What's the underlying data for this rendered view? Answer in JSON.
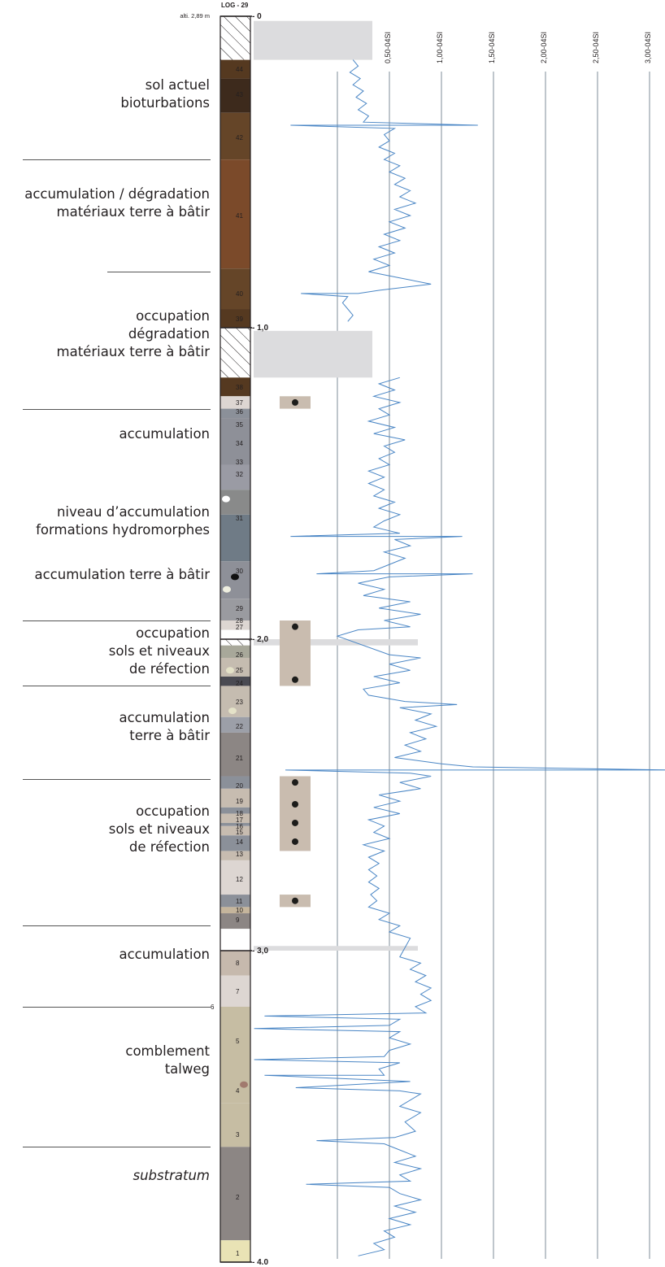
{
  "header": {
    "log_title": "LOG - 29",
    "altitude": "alti. 2,89 m"
  },
  "depth_marks": [
    {
      "label": "- 0",
      "depth": 0
    },
    {
      "label": "- 1,0",
      "depth": 1.0
    },
    {
      "label": "- 2,0",
      "depth": 2.0
    },
    {
      "label": "- 3,0",
      "depth": 3.0
    },
    {
      "label": "- 4.0",
      "depth": 4.0
    }
  ],
  "susceptibility_axis": {
    "ticks": [
      "0,50-04SI",
      "1,00-04SI",
      "1,50-04SI",
      "2,00-04SI",
      "2,50-04SI",
      "3,00-04SI"
    ],
    "values": [
      0.5,
      1.0,
      1.5,
      2.0,
      2.5,
      3.0
    ]
  },
  "phases": [
    {
      "lines": [
        "sol actuel",
        "bioturbations"
      ],
      "italic": false
    },
    {
      "lines": [
        "accumulation / dégradation",
        "matériaux terre à bâtir"
      ],
      "italic": false
    },
    {
      "lines": [
        "occupation",
        "dégradation",
        "matériaux terre à bâtir"
      ],
      "italic": false
    },
    {
      "lines": [
        "accumulation"
      ],
      "italic": false
    },
    {
      "lines": [
        "niveau d’accumulation",
        "formations hydromorphes"
      ],
      "italic": false
    },
    {
      "lines": [
        "accumulation terre à bâtir"
      ],
      "italic": false
    },
    {
      "lines": [
        "occupation",
        "sols et niveaux",
        "de réfection"
      ],
      "italic": false
    },
    {
      "lines": [
        "accumulation",
        "terre à bâtir"
      ],
      "italic": false
    },
    {
      "lines": [
        "occupation",
        "sols et niveaux",
        "de réfection"
      ],
      "italic": false
    },
    {
      "lines": [
        "accumulation"
      ],
      "italic": false
    },
    {
      "lines": [
        "comblement",
        "talweg"
      ],
      "italic": false
    },
    {
      "lines": [
        "substratum"
      ],
      "italic": true
    }
  ],
  "layer_numbers": [
    "44",
    "43",
    "42",
    "41",
    "40",
    "39",
    "38",
    "37",
    "36",
    "35",
    "34",
    "33",
    "32",
    "31",
    "30",
    "29",
    "28",
    "27",
    "26",
    "25",
    "24",
    "23",
    "22",
    "21",
    "20",
    "19",
    "18",
    "17",
    "16",
    "15",
    "14",
    "13",
    "12",
    "11",
    "10",
    "9",
    "8",
    "7",
    "6",
    "5",
    "4",
    "3",
    "2",
    "1"
  ],
  "colors": {
    "curve": "#4a86c5",
    "gridline": "#7f8c99",
    "gap_band": "#dcdcde",
    "sample_box": "#c9bcaf",
    "sample_dot": "#1d1d1b"
  },
  "chart_data": {
    "type": "line",
    "x_axis": "magnetic susceptibility",
    "y_axis": "depth (m)",
    "xlim": [
      0,
      3.0
    ],
    "ylim": [
      4.0,
      0
    ],
    "series": [
      {
        "points": [
          [
            0.15,
            0.14
          ],
          [
            0.2,
            0.16
          ],
          [
            0.12,
            0.18
          ],
          [
            0.22,
            0.2
          ],
          [
            0.15,
            0.22
          ],
          [
            0.25,
            0.24
          ],
          [
            0.18,
            0.26
          ],
          [
            0.28,
            0.28
          ],
          [
            0.2,
            0.3
          ],
          [
            0.3,
            0.32
          ],
          [
            0.25,
            0.34
          ],
          [
            1.35,
            0.35
          ],
          [
            0.2,
            0.35
          ],
          [
            0.05,
            0.35
          ],
          [
            -0.45,
            0.35
          ],
          [
            0.55,
            0.36
          ],
          [
            0.45,
            0.38
          ],
          [
            0.5,
            0.4
          ],
          [
            0.4,
            0.42
          ],
          [
            0.55,
            0.44
          ],
          [
            0.45,
            0.46
          ],
          [
            0.6,
            0.48
          ],
          [
            0.5,
            0.5
          ],
          [
            0.65,
            0.52
          ],
          [
            0.55,
            0.54
          ],
          [
            0.7,
            0.56
          ],
          [
            0.6,
            0.58
          ],
          [
            0.75,
            0.6
          ],
          [
            0.55,
            0.62
          ],
          [
            0.7,
            0.64
          ],
          [
            0.5,
            0.66
          ],
          [
            0.65,
            0.68
          ],
          [
            0.45,
            0.7
          ],
          [
            0.6,
            0.72
          ],
          [
            0.4,
            0.74
          ],
          [
            0.55,
            0.76
          ],
          [
            0.35,
            0.78
          ],
          [
            0.5,
            0.8
          ],
          [
            0.3,
            0.82
          ],
          [
            0.6,
            0.84
          ],
          [
            0.9,
            0.86
          ],
          [
            0.4,
            0.88
          ],
          [
            0.2,
            0.89
          ],
          [
            -0.35,
            0.89
          ],
          [
            0.1,
            0.9
          ],
          [
            0.05,
            0.92
          ],
          [
            0.1,
            0.94
          ],
          [
            0.15,
            0.96
          ],
          [
            0.1,
            0.98
          ],
          [
            0.6,
            1.16
          ],
          [
            0.4,
            1.18
          ],
          [
            0.55,
            1.2
          ],
          [
            0.35,
            1.22
          ],
          [
            0.6,
            1.24
          ],
          [
            0.4,
            1.26
          ],
          [
            0.5,
            1.28
          ],
          [
            0.3,
            1.3
          ],
          [
            0.55,
            1.32
          ],
          [
            0.35,
            1.34
          ],
          [
            0.65,
            1.36
          ],
          [
            0.45,
            1.38
          ],
          [
            0.55,
            1.4
          ],
          [
            0.4,
            1.42
          ],
          [
            0.5,
            1.44
          ],
          [
            0.3,
            1.46
          ],
          [
            0.45,
            1.48
          ],
          [
            0.3,
            1.5
          ],
          [
            0.45,
            1.52
          ],
          [
            0.35,
            1.54
          ],
          [
            0.55,
            1.56
          ],
          [
            0.4,
            1.58
          ],
          [
            0.6,
            1.6
          ],
          [
            0.45,
            1.62
          ],
          [
            0.35,
            1.64
          ],
          [
            0.6,
            1.66
          ],
          [
            -0.45,
            1.67
          ],
          [
            1.2,
            1.67
          ],
          [
            0.55,
            1.68
          ],
          [
            0.7,
            1.7
          ],
          [
            0.45,
            1.72
          ],
          [
            0.65,
            1.74
          ],
          [
            0.5,
            1.76
          ],
          [
            0.35,
            1.78
          ],
          [
            -0.2,
            1.79
          ],
          [
            1.3,
            1.79
          ],
          [
            0.5,
            1.8
          ],
          [
            0.2,
            1.82
          ],
          [
            0.45,
            1.84
          ],
          [
            0.25,
            1.86
          ],
          [
            0.7,
            1.88
          ],
          [
            0.4,
            1.9
          ],
          [
            0.8,
            1.92
          ],
          [
            0.45,
            1.94
          ],
          [
            0.7,
            1.96
          ],
          [
            0.2,
            1.97
          ],
          [
            0.0,
            1.99
          ],
          [
            0.5,
            2.05
          ],
          [
            0.8,
            2.06
          ],
          [
            0.5,
            2.08
          ],
          [
            0.7,
            2.1
          ],
          [
            0.35,
            2.12
          ],
          [
            0.6,
            2.14
          ],
          [
            0.25,
            2.16
          ],
          [
            0.3,
            2.18
          ],
          [
            0.65,
            2.2
          ],
          [
            1.15,
            2.21
          ],
          [
            0.6,
            2.22
          ],
          [
            0.9,
            2.24
          ],
          [
            0.75,
            2.26
          ],
          [
            0.95,
            2.28
          ],
          [
            0.7,
            2.3
          ],
          [
            0.85,
            2.32
          ],
          [
            0.65,
            2.34
          ],
          [
            0.8,
            2.36
          ],
          [
            0.55,
            2.38
          ],
          [
            1.0,
            2.4
          ],
          [
            1.3,
            2.41
          ],
          [
            3.2,
            2.42
          ],
          [
            -0.5,
            2.42
          ],
          [
            0.7,
            2.43
          ],
          [
            0.9,
            2.44
          ],
          [
            0.6,
            2.46
          ],
          [
            0.8,
            2.48
          ],
          [
            0.4,
            2.5
          ],
          [
            0.6,
            2.52
          ],
          [
            0.35,
            2.54
          ],
          [
            0.6,
            2.56
          ],
          [
            0.3,
            2.58
          ],
          [
            0.45,
            2.6
          ],
          [
            0.35,
            2.62
          ],
          [
            0.5,
            2.64
          ],
          [
            0.25,
            2.66
          ],
          [
            0.45,
            2.68
          ],
          [
            0.3,
            2.7
          ],
          [
            0.4,
            2.72
          ],
          [
            0.3,
            2.74
          ],
          [
            0.38,
            2.76
          ],
          [
            0.3,
            2.78
          ],
          [
            0.4,
            2.8
          ],
          [
            0.32,
            2.82
          ],
          [
            0.38,
            2.84
          ],
          [
            0.3,
            2.86
          ],
          [
            0.5,
            2.88
          ],
          [
            0.4,
            2.9
          ],
          [
            0.6,
            2.92
          ],
          [
            0.5,
            2.94
          ],
          [
            0.7,
            2.96
          ],
          [
            0.6,
            3.02
          ],
          [
            0.8,
            3.04
          ],
          [
            0.7,
            3.06
          ],
          [
            0.85,
            3.08
          ],
          [
            0.75,
            3.1
          ],
          [
            0.9,
            3.12
          ],
          [
            0.8,
            3.14
          ],
          [
            0.9,
            3.16
          ],
          [
            0.75,
            3.18
          ],
          [
            0.85,
            3.2
          ],
          [
            -0.7,
            3.21
          ],
          [
            0.6,
            3.22
          ],
          [
            0.5,
            3.24
          ],
          [
            -0.8,
            3.25
          ],
          [
            0.6,
            3.26
          ],
          [
            0.5,
            3.28
          ],
          [
            0.7,
            3.3
          ],
          [
            0.5,
            3.32
          ],
          [
            0.45,
            3.34
          ],
          [
            -0.8,
            3.35
          ],
          [
            0.6,
            3.36
          ],
          [
            0.4,
            3.38
          ],
          [
            0.45,
            3.4
          ],
          [
            -0.7,
            3.4
          ],
          [
            0.7,
            3.42
          ],
          [
            -0.4,
            3.44
          ],
          [
            0.6,
            3.45
          ],
          [
            0.8,
            3.46
          ],
          [
            0.6,
            3.5
          ],
          [
            0.8,
            3.52
          ],
          [
            0.65,
            3.55
          ],
          [
            0.75,
            3.58
          ],
          [
            0.55,
            3.6
          ],
          [
            -0.2,
            3.61
          ],
          [
            0.45,
            3.62
          ],
          [
            0.6,
            3.64
          ],
          [
            0.75,
            3.66
          ],
          [
            0.55,
            3.68
          ],
          [
            0.8,
            3.7
          ],
          [
            0.6,
            3.72
          ],
          [
            0.7,
            3.74
          ],
          [
            -0.3,
            3.75
          ],
          [
            0.5,
            3.76
          ],
          [
            0.6,
            3.78
          ],
          [
            0.8,
            3.8
          ],
          [
            0.55,
            3.82
          ],
          [
            0.75,
            3.84
          ],
          [
            0.5,
            3.86
          ],
          [
            0.7,
            3.88
          ],
          [
            0.45,
            3.9
          ],
          [
            0.55,
            3.92
          ],
          [
            0.35,
            3.94
          ],
          [
            0.45,
            3.96
          ],
          [
            0.2,
            3.98
          ]
        ]
      }
    ]
  }
}
